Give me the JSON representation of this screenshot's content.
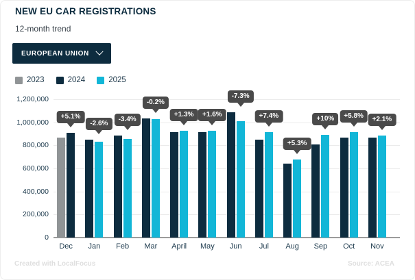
{
  "controls": {
    "region_selector": {
      "label": "EUROPEAN UNION",
      "icon": "chevron-down-icon"
    }
  },
  "footer": {
    "credit": "Created with LocalFocus",
    "source": "Source: ACEA"
  },
  "colors": {
    "navy": "#0d2c3f",
    "cyan": "#12b6d7",
    "gray_2023": "#909496",
    "badge_gray": "#4a4a4a"
  },
  "chart_data": {
    "type": "bar",
    "title": "NEW EU CAR REGISTRATIONS",
    "subtitle": "12-month trend",
    "categories": [
      "Dec",
      "Jan",
      "Feb",
      "Mar",
      "April",
      "May",
      "Jun",
      "Jul",
      "Aug",
      "Sep",
      "Oct",
      "Nov"
    ],
    "series": [
      {
        "name": "2023",
        "color": "#909496",
        "values": [
          867000,
          null,
          null,
          null,
          null,
          null,
          null,
          null,
          null,
          null,
          null,
          null
        ]
      },
      {
        "name": "2024",
        "color": "#0d2c3f",
        "values": [
          911000,
          852000,
          884000,
          1032000,
          914000,
          912000,
          1090000,
          852000,
          644000,
          809000,
          866000,
          870000
        ]
      },
      {
        "name": "2025",
        "color": "#12b6d7",
        "values": [
          null,
          830000,
          854000,
          1030000,
          926000,
          927000,
          1010000,
          915000,
          678000,
          889000,
          916000,
          888000
        ]
      }
    ],
    "change_labels": [
      "+5.1%",
      "-2.6%",
      "-3.4%",
      "-0.2%",
      "+1.3%",
      "+1.6%",
      "-7.3%",
      "+7.4%",
      "+5.3%",
      "+10%",
      "+5.8%",
      "+2.1%"
    ],
    "xlabel": "",
    "ylabel": "",
    "ylim": [
      0,
      1200000
    ],
    "yticks": [
      "0",
      "200,000",
      "400,000",
      "600,000",
      "800,000",
      "1,000,000",
      "1,200,000"
    ],
    "grid": true,
    "legend_position": "top-left"
  }
}
